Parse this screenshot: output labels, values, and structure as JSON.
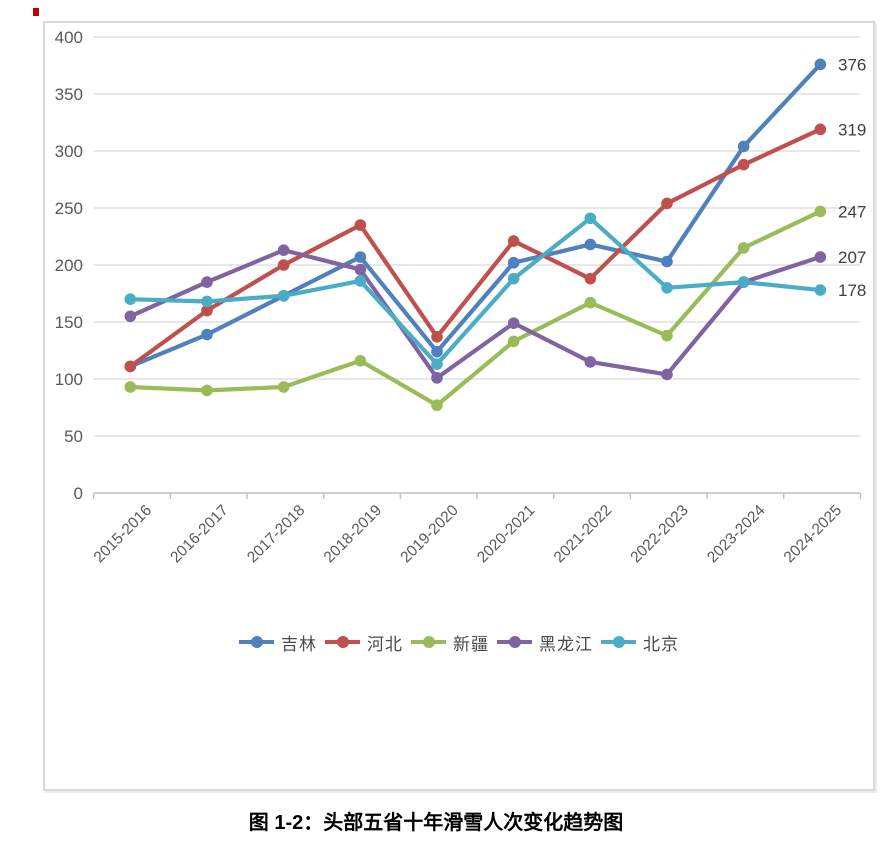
{
  "page": {
    "caption": "图 1-2：头部五省十年滑雪人次变化趋势图"
  },
  "colors": {
    "grid": "#d9d9d9",
    "axis": "#bfbfbf",
    "tick_text": "#595959",
    "data_label_text": "#3f3f3f",
    "annotation_mark": "#c00000"
  },
  "chart_data": {
    "type": "line",
    "title": "图 1-2：头部五省十年滑雪人次变化趋势图",
    "xlabel": "",
    "ylabel": "",
    "ylim": [
      0,
      400
    ],
    "ytick_step": 50,
    "grid": true,
    "legend_position": "bottom",
    "categories": [
      "2015-2016",
      "2016-2017",
      "2017-2018",
      "2018-2019",
      "2019-2020",
      "2020-2021",
      "2021-2022",
      "2022-2023",
      "2023-2024",
      "2024-2025"
    ],
    "series": [
      {
        "name": "吉林",
        "color": "#4F81BD",
        "values": [
          111,
          139,
          173,
          207,
          124,
          202,
          218,
          203,
          304,
          376
        ]
      },
      {
        "name": "河北",
        "color": "#C0504D",
        "values": [
          111,
          160,
          200,
          235,
          137,
          221,
          188,
          254,
          288,
          319
        ]
      },
      {
        "name": "新疆",
        "color": "#9BBB59",
        "values": [
          93,
          90,
          93,
          116,
          77,
          133,
          167,
          138,
          215,
          247
        ]
      },
      {
        "name": "黑龙江",
        "color": "#8064A2",
        "values": [
          155,
          185,
          213,
          196,
          101,
          149,
          115,
          104,
          185,
          207
        ]
      },
      {
        "name": "北京",
        "color": "#4BACC6",
        "values": [
          170,
          168,
          173,
          186,
          113,
          188,
          241,
          180,
          185,
          178
        ]
      }
    ],
    "end_labels": [
      376,
      319,
      247,
      207,
      178
    ]
  }
}
